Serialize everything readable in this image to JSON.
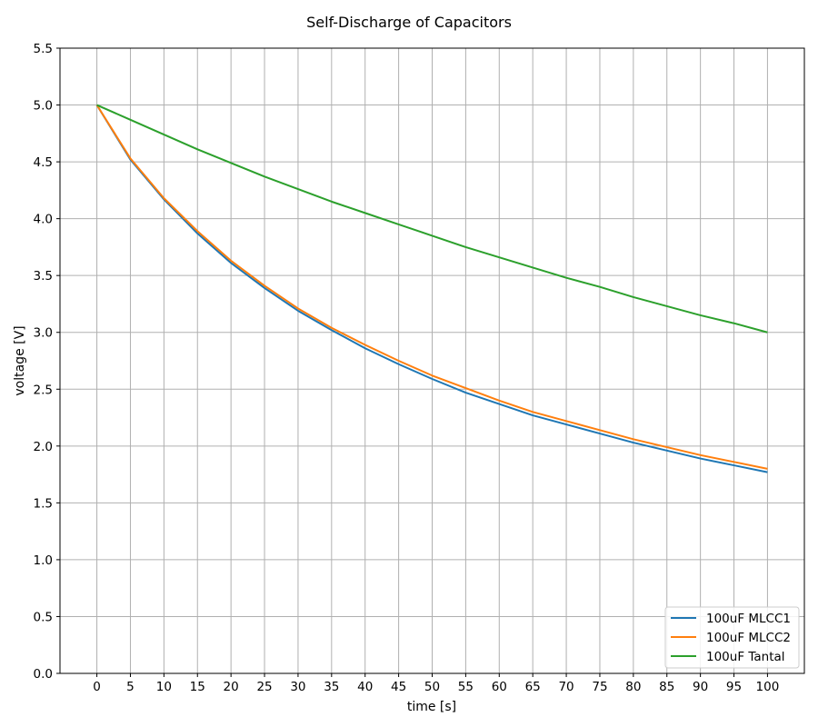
{
  "chart_data": {
    "type": "line",
    "title": "Self-Discharge of Capacitors",
    "xlabel": "time [s]",
    "ylabel": "voltage [V]",
    "xlim": [
      -5.5,
      105.5
    ],
    "ylim": [
      0.0,
      5.5
    ],
    "xticks": [
      0,
      5,
      10,
      15,
      20,
      25,
      30,
      35,
      40,
      45,
      50,
      55,
      60,
      65,
      70,
      75,
      80,
      85,
      90,
      95,
      100
    ],
    "yticks": [
      0.0,
      0.5,
      1.0,
      1.5,
      2.0,
      2.5,
      3.0,
      3.5,
      4.0,
      4.5,
      5.0,
      5.5
    ],
    "grid": true,
    "legend_position": "bottom-right",
    "x": [
      0,
      5,
      10,
      15,
      20,
      25,
      30,
      35,
      40,
      45,
      50,
      55,
      60,
      65,
      70,
      75,
      80,
      85,
      90,
      95,
      100
    ],
    "series": [
      {
        "name": "100uF MLCC1",
        "color": "#1f77b4",
        "values": [
          5.0,
          4.52,
          4.17,
          3.87,
          3.61,
          3.39,
          3.19,
          3.02,
          2.86,
          2.72,
          2.59,
          2.47,
          2.37,
          2.27,
          2.19,
          2.11,
          2.03,
          1.96,
          1.89,
          1.83,
          1.77
        ]
      },
      {
        "name": "100uF MLCC2",
        "color": "#ff7f0e",
        "values": [
          5.0,
          4.53,
          4.18,
          3.89,
          3.63,
          3.41,
          3.21,
          3.04,
          2.89,
          2.75,
          2.62,
          2.51,
          2.4,
          2.3,
          2.22,
          2.14,
          2.06,
          1.99,
          1.92,
          1.86,
          1.8
        ]
      },
      {
        "name": "100uF Tantal",
        "color": "#2ca02c",
        "values": [
          5.0,
          4.87,
          4.74,
          4.61,
          4.49,
          4.37,
          4.26,
          4.15,
          4.05,
          3.95,
          3.85,
          3.75,
          3.66,
          3.57,
          3.48,
          3.4,
          3.31,
          3.23,
          3.15,
          3.08,
          3.0
        ]
      }
    ]
  }
}
